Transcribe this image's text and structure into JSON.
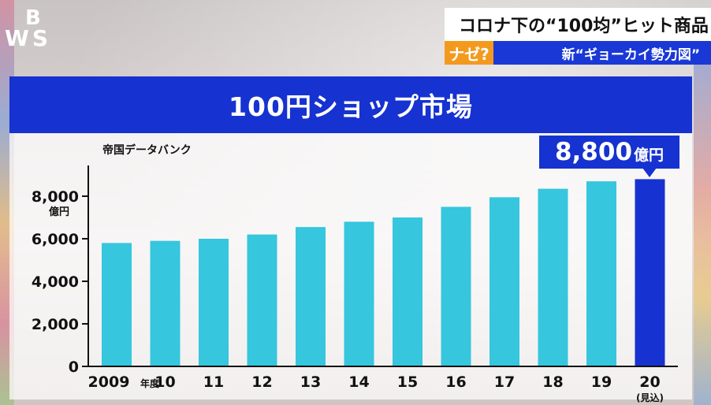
{
  "logo": {
    "line1": "B",
    "line2": "WS"
  },
  "header": {
    "title": "コロナ下の“100均”ヒット商品",
    "badge": "ナゼ?",
    "subtitle": "新“ギョーカイ勢力図”"
  },
  "chart_title": "100円ショップ市場",
  "source": "帝国データバンク",
  "callout": {
    "value": "8,800",
    "unit": "億円"
  },
  "colors": {
    "bar": "#36c6de",
    "highlight_bar": "#1632d0",
    "header": "#1632d0",
    "badge": "#f39a1e"
  },
  "chart_data": {
    "type": "bar",
    "title": "100円ショップ市場",
    "ylabel": "億円",
    "ylim": [
      0,
      9000
    ],
    "yticks": [
      0,
      2000,
      4000,
      6000,
      8000
    ],
    "ytick_labels": [
      "0",
      "2,000",
      "4,000",
      "6,000",
      "8,000"
    ],
    "categories": [
      "2009",
      "10",
      "11",
      "12",
      "13",
      "14",
      "15",
      "16",
      "17",
      "18",
      "19",
      "20"
    ],
    "category_suffix_first": "年度",
    "category_suffix_last": "(見込)",
    "values": [
      5800,
      5900,
      6000,
      6200,
      6550,
      6800,
      7000,
      7500,
      7950,
      8350,
      8700,
      8800
    ],
    "highlight_index": 11,
    "annotation": "8,800億円"
  }
}
